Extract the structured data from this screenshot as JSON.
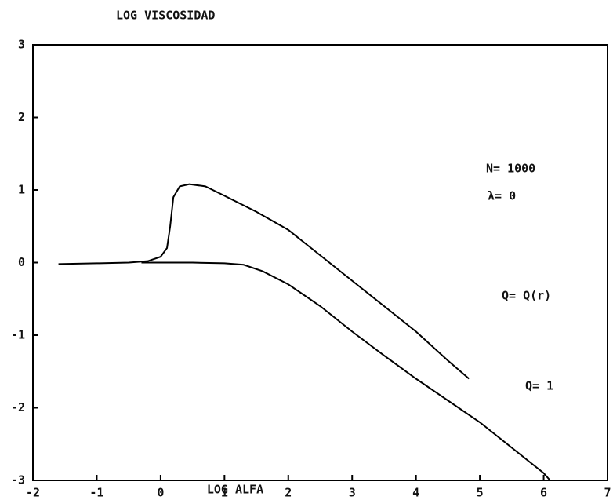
{
  "chart_data": {
    "type": "line",
    "title": "LOG VISCOSIDAD",
    "x_label": "LOG ALFA",
    "annotations": [
      "N= 1000",
      "λ= 0"
    ],
    "series": [
      {
        "name": "Q= Q(r)",
        "color": "#000000",
        "x": [
          -1.6,
          -1,
          -0.5,
          -0.2,
          0,
          0.1,
          0.15,
          0.2,
          0.3,
          0.45,
          0.7,
          1,
          1.5,
          2,
          2.5,
          3,
          3.5,
          4,
          4.5,
          4.83
        ],
        "values": [
          -0.02,
          -0.01,
          0,
          0.02,
          0.08,
          0.2,
          0.5,
          0.9,
          1.05,
          1.08,
          1.05,
          0.92,
          0.7,
          0.45,
          0.1,
          -0.25,
          -0.6,
          -0.95,
          -1.35,
          -1.6
        ]
      },
      {
        "name": "Q= 1",
        "color": "#000000",
        "x": [
          -0.3,
          0,
          0.5,
          1,
          1.3,
          1.6,
          2,
          2.5,
          3,
          3.5,
          4,
          4.5,
          5,
          5.5,
          6,
          6.1,
          6.5,
          7
        ],
        "values": [
          0,
          0,
          0,
          -0.01,
          -0.03,
          -0.12,
          -0.3,
          -0.6,
          -0.95,
          -1.28,
          -1.6,
          -1.9,
          -2.2,
          -2.55,
          -2.9,
          -3,
          -3,
          -3
        ]
      }
    ],
    "xlim": [
      -2,
      7
    ],
    "xticks": [
      -2,
      -1,
      0,
      1,
      2,
      3,
      4,
      5,
      6,
      7
    ],
    "ylim": [
      -3,
      3
    ],
    "yticks": [
      -3,
      -2,
      -1,
      0,
      1,
      2,
      3
    ],
    "grid": false
  }
}
